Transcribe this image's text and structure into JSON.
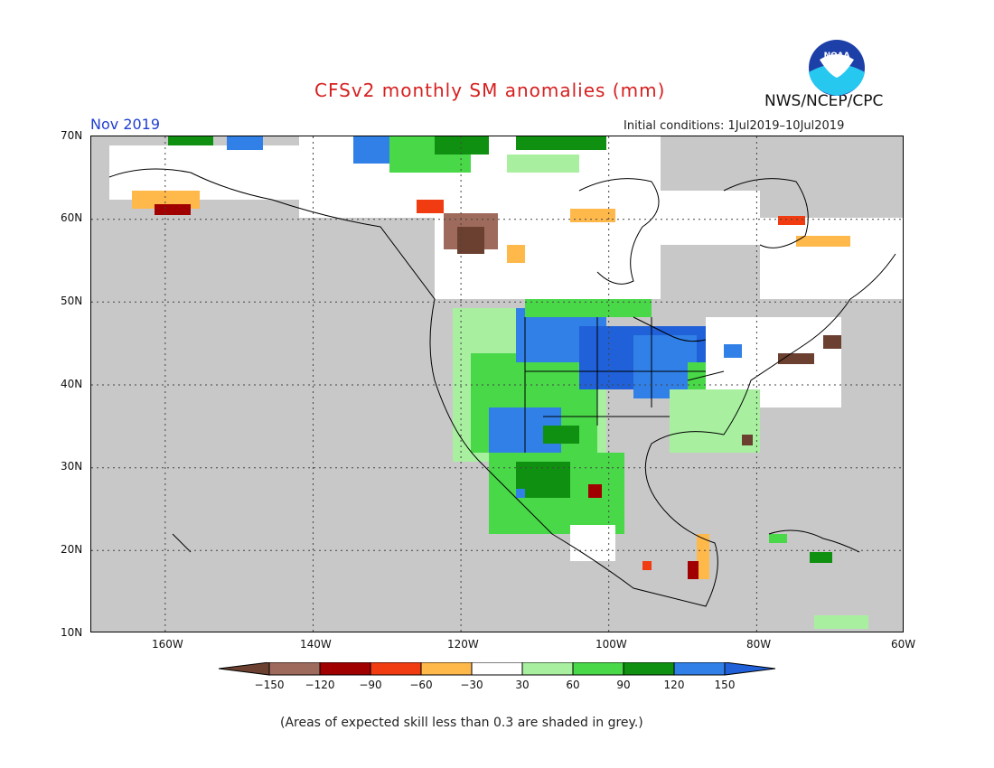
{
  "header": {
    "title": "CFSv2 monthly SM anomalies (mm)",
    "forecast_month": "Nov 2019",
    "initial_conditions": "Initial conditions: 1Jul2019–10Jul2019",
    "agency": "NWS/NCEP/CPC",
    "logo_text": "NOAA"
  },
  "map": {
    "lat_labels": [
      "70N",
      "60N",
      "50N",
      "40N",
      "30N",
      "20N",
      "10N"
    ],
    "lon_labels": [
      "160W",
      "140W",
      "120W",
      "100W",
      "80W",
      "60W"
    ],
    "background_color": "#c8c8c8",
    "grid": true
  },
  "legend": {
    "tick_labels": [
      "−150",
      "−120",
      "−90",
      "−60",
      "−30",
      "30",
      "60",
      "90",
      "120",
      "150"
    ],
    "colors": [
      "#6b4030",
      "#9e6a5c",
      "#a00000",
      "#f03c10",
      "#ffb84a",
      "#ffffff",
      "#a8f0a0",
      "#48d848",
      "#109010",
      "#3080e8",
      "#2060d8"
    ]
  },
  "footnote": "(Areas of expected skill less than 0.3 are shaded in grey.)"
}
